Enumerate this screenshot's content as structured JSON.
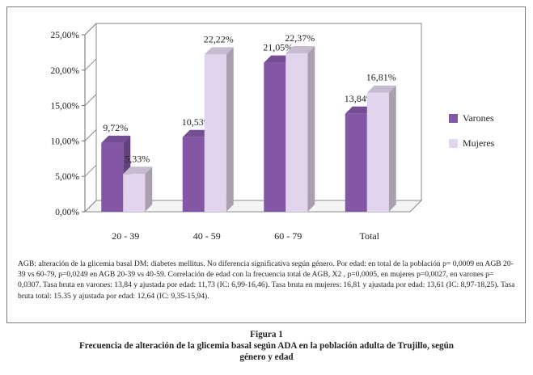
{
  "chart_data": {
    "type": "bar",
    "categories": [
      "20 - 39",
      "40 - 59",
      "60 - 79",
      "Total"
    ],
    "series": [
      {
        "name": "Varones",
        "values": [
          9.72,
          10.53,
          21.05,
          13.84
        ],
        "labels": [
          "9,72%",
          "10,53%",
          "21,05%",
          "13,84%"
        ],
        "color": "#8457a6"
      },
      {
        "name": "Mujeres",
        "values": [
          5.33,
          22.22,
          22.37,
          16.81
        ],
        "labels": [
          "5,33%",
          "22,22%",
          "22,37%",
          "16,81%"
        ],
        "color": "#e2d4ec"
      }
    ],
    "ylim": [
      0,
      25
    ],
    "yticks": [
      "0,00%",
      "5,00%",
      "10,00%",
      "15,00%",
      "20,00%",
      "25,00%"
    ],
    "grid": false,
    "legend": "right",
    "three_d": true
  },
  "note": "AGB: alteración de la glicemia basal   DM: diabetes mellitus. No diferencia significativa según género. Por edad: en total de la población p= 0,0009 en  AGB 20-39 vs 60-79, p=0,0249 en AGB 20-39 vs 40-59. Correlación de edad con la frecuencia total de AGB,  X2 , p=0,0005, en mujeres p=0,0027, en varones p= 0,0307. Tasa bruta en varones: 13,84 y ajustada por edad: 11,73 (IC: 6,99-16,46). Tasa bruta en mujeres: 16,81 y ajustada por edad: 13,61 (IC: 8,97-18,25). Tasa bruta total: 15.35 y ajustada por edad: 12,64 (IC: 9,35-15,94).",
  "caption": {
    "figure": "Figura 1",
    "line1": "Frecuencia de alteración de la glicemia basal según ADA en la población adulta de Trujillo, según",
    "line2": "género y edad"
  }
}
